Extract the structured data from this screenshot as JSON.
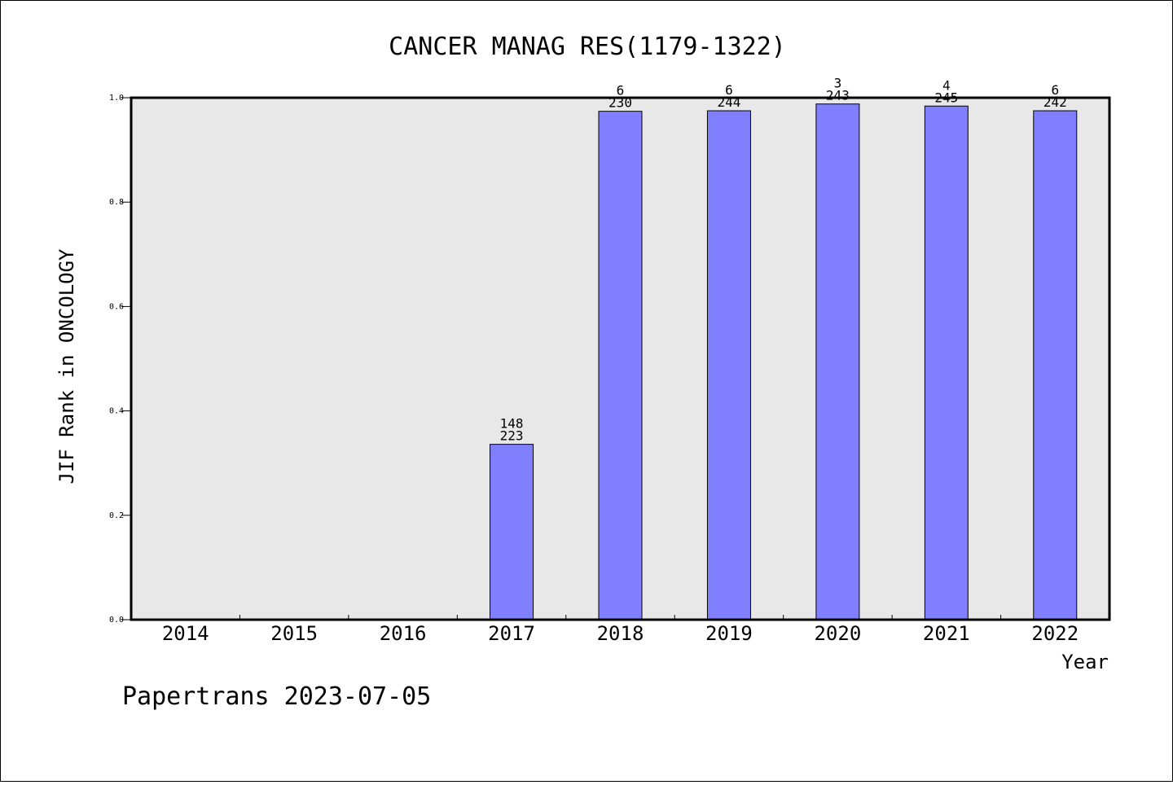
{
  "chart_data": {
    "type": "bar",
    "title": "CANCER MANAG RES(1179-1322)",
    "xlabel": "Year",
    "ylabel": "JIF Rank in ONCOLOGY",
    "ylim": [
      0,
      1.0
    ],
    "yticks": [
      "0.0",
      "0.2",
      "0.4",
      "0.6",
      "0.8",
      "1.0"
    ],
    "ytick_values": [
      0,
      0.2,
      0.4,
      0.6,
      0.8,
      1.0
    ],
    "categories": [
      "2014",
      "2015",
      "2016",
      "2017",
      "2018",
      "2019",
      "2020",
      "2021",
      "2022"
    ],
    "values": [
      null,
      null,
      null,
      0.336,
      0.974,
      0.975,
      0.988,
      0.984,
      0.975
    ],
    "rank_labels": [
      null,
      null,
      null,
      "148",
      "6",
      "6",
      "3",
      "4",
      "6"
    ],
    "total_labels": [
      null,
      null,
      null,
      "223",
      "230",
      "244",
      "243",
      "245",
      "242"
    ],
    "grid": false,
    "colors": {
      "bar_fill": "#8080ff",
      "bar_stroke": "#000000",
      "plot_background": "#e8e8e8"
    }
  },
  "footer": "Papertrans 2023-07-05"
}
